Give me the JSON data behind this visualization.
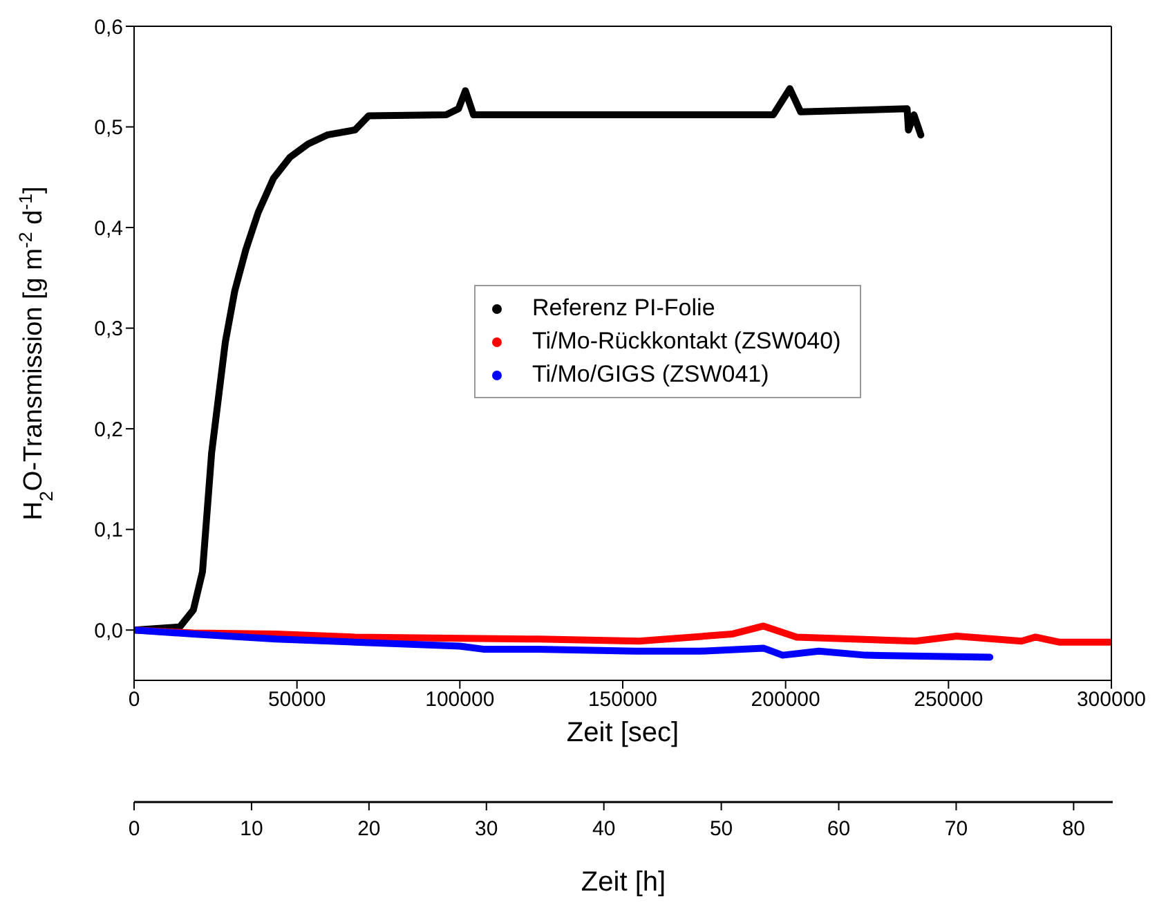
{
  "chart_data": {
    "type": "line",
    "xlabel": "Zeit [sec]",
    "ylabel": "H$_{2}$O-Transmission [g m$^{-2}$ d$^{-1}$]",
    "x2label": "Zeit [h]",
    "xlim": [
      0,
      300000
    ],
    "xticks": [
      0,
      50000,
      100000,
      150000,
      200000,
      250000,
      300000
    ],
    "x2lim": [
      0,
      83.333
    ],
    "x2ticks": [
      0,
      10,
      20,
      30,
      40,
      50,
      60,
      70,
      80
    ],
    "ylim": [
      -0.05,
      0.6
    ],
    "yticks": [
      {
        "value": 0,
        "label": "0,0"
      },
      {
        "value": 0.1,
        "label": "0,1"
      },
      {
        "value": 0.2,
        "label": "0,2"
      },
      {
        "value": 0.3,
        "label": "0,3"
      },
      {
        "value": 0.4,
        "label": "0,4"
      },
      {
        "value": 0.5,
        "label": "0,5"
      },
      {
        "value": 0.6,
        "label": "0,6"
      }
    ],
    "grid": false,
    "legend": "right",
    "marker": "none",
    "line_style": "solid",
    "series": [
      {
        "name": "Referenz PI-Folie",
        "color": "#000000",
        "x": [
          0,
          14000,
          18200,
          21000,
          22500,
          23800,
          25900,
          28000,
          30900,
          34300,
          38100,
          42800,
          47900,
          53400,
          59300,
          67800,
          72000,
          95800,
          99600,
          101700,
          104200,
          119900,
          196200,
          201300,
          204600,
          237300,
          237700,
          239400,
          241500
        ],
        "values": [
          0,
          0.003,
          0.02,
          0.058,
          0.121,
          0.176,
          0.231,
          0.286,
          0.337,
          0.378,
          0.415,
          0.449,
          0.47,
          0.483,
          0.492,
          0.497,
          0.511,
          0.512,
          0.518,
          0.536,
          0.512,
          0.512,
          0.512,
          0.538,
          0.515,
          0.518,
          0.497,
          0.512,
          0.492
        ]
      },
      {
        "name": "Ti/Mo-Rückkontakt (ZSW040)",
        "color": "#ff0000",
        "x": [
          0,
          18200,
          43600,
          67800,
          124100,
          155000,
          183500,
          193200,
          203400,
          239800,
          252500,
          272400,
          276700,
          283900,
          300000
        ],
        "values": [
          0,
          -0.003,
          -0.004,
          -0.007,
          -0.009,
          -0.011,
          -0.004,
          0.004,
          -0.007,
          -0.011,
          -0.006,
          -0.011,
          -0.007,
          -0.012,
          -0.012
        ]
      },
      {
        "name": "Ti/Mo/GIGS (ZSW041)",
        "color": "#0000ff",
        "x": [
          0,
          18200,
          43600,
          67800,
          100000,
          107200,
          124100,
          153800,
          173700,
          193200,
          199100,
          210200,
          224600,
          262700
        ],
        "values": [
          0,
          -0.004,
          -0.009,
          -0.012,
          -0.016,
          -0.019,
          -0.019,
          -0.021,
          -0.021,
          -0.018,
          -0.025,
          -0.021,
          -0.025,
          -0.027
        ]
      }
    ]
  }
}
